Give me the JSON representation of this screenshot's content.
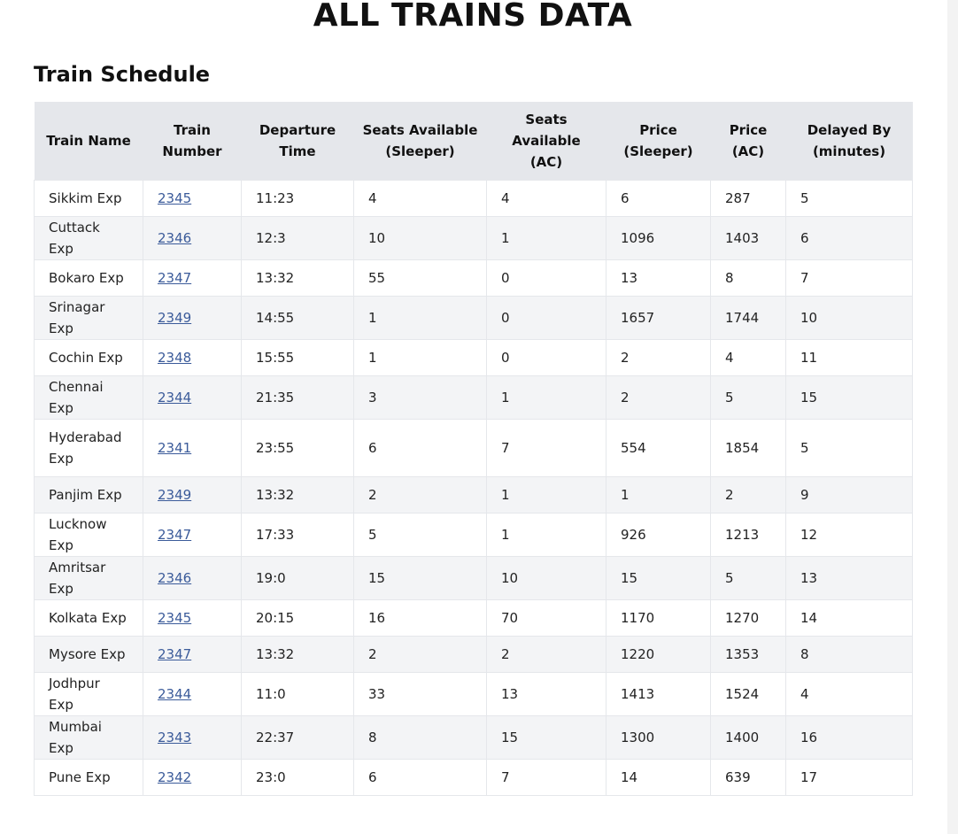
{
  "page": {
    "title": "ALL TRAINS DATA",
    "section_title": "Train Schedule"
  },
  "table": {
    "headers": [
      [
        "Train Name"
      ],
      [
        "Train",
        "Number"
      ],
      [
        "Departure",
        "Time"
      ],
      [
        "Seats Available",
        "(Sleeper)"
      ],
      [
        "Seats",
        "Available",
        "(AC)"
      ],
      [
        "Price",
        "(Sleeper)"
      ],
      [
        "Price",
        "(AC)"
      ],
      [
        "Delayed By",
        "(minutes)"
      ]
    ],
    "rows": [
      {
        "name": "Sikkim Exp",
        "number": "2345",
        "departure": "11:23",
        "seats_sleeper": "4",
        "seats_ac": "4",
        "price_sleeper": "6",
        "price_ac": "287",
        "delay": "5"
      },
      {
        "name": "Cuttack Exp",
        "number": "2346",
        "departure": "12:3",
        "seats_sleeper": "10",
        "seats_ac": "1",
        "price_sleeper": "1096",
        "price_ac": "1403",
        "delay": "6"
      },
      {
        "name": "Bokaro Exp",
        "number": "2347",
        "departure": "13:32",
        "seats_sleeper": "55",
        "seats_ac": "0",
        "price_sleeper": "13",
        "price_ac": "8",
        "delay": "7"
      },
      {
        "name": "Srinagar Exp",
        "number": "2349",
        "departure": "14:55",
        "seats_sleeper": "1",
        "seats_ac": "0",
        "price_sleeper": "1657",
        "price_ac": "1744",
        "delay": "10"
      },
      {
        "name": "Cochin Exp",
        "number": "2348",
        "departure": "15:55",
        "seats_sleeper": "1",
        "seats_ac": "0",
        "price_sleeper": "2",
        "price_ac": "4",
        "delay": "11"
      },
      {
        "name": "Chennai Exp",
        "number": "2344",
        "departure": "21:35",
        "seats_sleeper": "3",
        "seats_ac": "1",
        "price_sleeper": "2",
        "price_ac": "5",
        "delay": "15"
      },
      {
        "name": "Hyderabad Exp",
        "number": "2341",
        "departure": "23:55",
        "seats_sleeper": "6",
        "seats_ac": "7",
        "price_sleeper": "554",
        "price_ac": "1854",
        "delay": "5"
      },
      {
        "name": "Panjim Exp",
        "number": "2349",
        "departure": "13:32",
        "seats_sleeper": "2",
        "seats_ac": "1",
        "price_sleeper": "1",
        "price_ac": "2",
        "delay": "9"
      },
      {
        "name": "Lucknow Exp",
        "number": "2347",
        "departure": "17:33",
        "seats_sleeper": "5",
        "seats_ac": "1",
        "price_sleeper": "926",
        "price_ac": "1213",
        "delay": "12"
      },
      {
        "name": "Amritsar Exp",
        "number": "2346",
        "departure": "19:0",
        "seats_sleeper": "15",
        "seats_ac": "10",
        "price_sleeper": "15",
        "price_ac": "5",
        "delay": "13"
      },
      {
        "name": "Kolkata Exp",
        "number": "2345",
        "departure": "20:15",
        "seats_sleeper": "16",
        "seats_ac": "70",
        "price_sleeper": "1170",
        "price_ac": "1270",
        "delay": "14"
      },
      {
        "name": "Mysore Exp",
        "number": "2347",
        "departure": "13:32",
        "seats_sleeper": "2",
        "seats_ac": "2",
        "price_sleeper": "1220",
        "price_ac": "1353",
        "delay": "8"
      },
      {
        "name": "Jodhpur Exp",
        "number": "2344",
        "departure": "11:0",
        "seats_sleeper": "33",
        "seats_ac": "13",
        "price_sleeper": "1413",
        "price_ac": "1524",
        "delay": "4"
      },
      {
        "name": "Mumbai Exp",
        "number": "2343",
        "departure": "22:37",
        "seats_sleeper": "8",
        "seats_ac": "15",
        "price_sleeper": "1300",
        "price_ac": "1400",
        "delay": "16"
      },
      {
        "name": "Pune Exp",
        "number": "2342",
        "departure": "23:0",
        "seats_sleeper": "6",
        "seats_ac": "7",
        "price_sleeper": "14",
        "price_ac": "639",
        "delay": "17"
      }
    ]
  }
}
